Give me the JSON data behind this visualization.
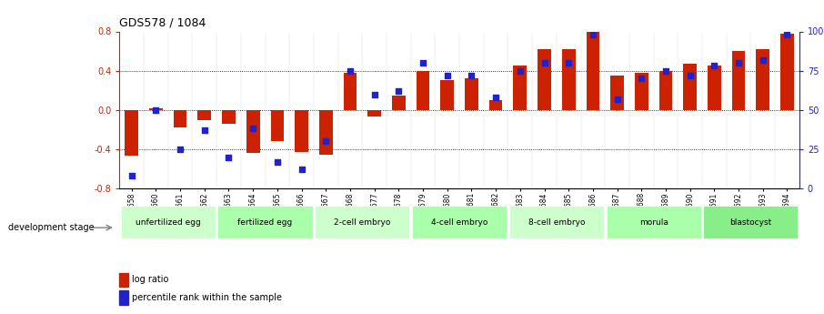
{
  "title": "GDS578 / 1084",
  "samples": [
    "GSM14658",
    "GSM14660",
    "GSM14661",
    "GSM14662",
    "GSM14663",
    "GSM14664",
    "GSM14665",
    "GSM14666",
    "GSM14667",
    "GSM14668",
    "GSM14677",
    "GSM14678",
    "GSM14679",
    "GSM14680",
    "GSM14681",
    "GSM14682",
    "GSM14683",
    "GSM14684",
    "GSM14685",
    "GSM14686",
    "GSM14687",
    "GSM14688",
    "GSM14689",
    "GSM14690",
    "GSM14691",
    "GSM14692",
    "GSM14693",
    "GSM14694"
  ],
  "log_ratio": [
    -0.47,
    0.02,
    -0.18,
    -0.1,
    -0.14,
    -0.44,
    -0.32,
    -0.43,
    -0.46,
    0.38,
    -0.07,
    0.15,
    0.4,
    0.3,
    0.32,
    0.1,
    0.45,
    0.62,
    0.62,
    0.8,
    0.35,
    0.38,
    0.4,
    0.47,
    0.45,
    0.6,
    0.62,
    0.78
  ],
  "percentile": [
    8,
    50,
    25,
    37,
    20,
    38,
    17,
    12,
    30,
    75,
    60,
    62,
    80,
    72,
    72,
    58,
    75,
    80,
    80,
    98,
    57,
    70,
    75,
    72,
    78,
    80,
    82,
    98
  ],
  "stage_groups": [
    {
      "label": "unfertilized egg",
      "start": 0,
      "end": 4,
      "color": "#ccffcc"
    },
    {
      "label": "fertilized egg",
      "start": 4,
      "end": 8,
      "color": "#aaffaa"
    },
    {
      "label": "2-cell embryo",
      "start": 8,
      "end": 12,
      "color": "#ccffcc"
    },
    {
      "label": "4-cell embryo",
      "start": 12,
      "end": 16,
      "color": "#aaffaa"
    },
    {
      "label": "8-cell embryo",
      "start": 16,
      "end": 20,
      "color": "#ccffcc"
    },
    {
      "label": "morula",
      "start": 20,
      "end": 24,
      "color": "#aaffaa"
    },
    {
      "label": "blastocyst",
      "start": 24,
      "end": 28,
      "color": "#88ee88"
    }
  ],
  "bar_color": "#cc2200",
  "dot_color": "#2222cc",
  "ylim": [
    -0.8,
    0.8
  ],
  "y2lim": [
    0,
    100
  ],
  "yticks": [
    -0.8,
    -0.4,
    0.0,
    0.4,
    0.8
  ],
  "y2ticks": [
    0,
    25,
    50,
    75,
    100
  ],
  "dotted_lines": [
    -0.4,
    0.0,
    0.4
  ],
  "bar_width": 0.55
}
